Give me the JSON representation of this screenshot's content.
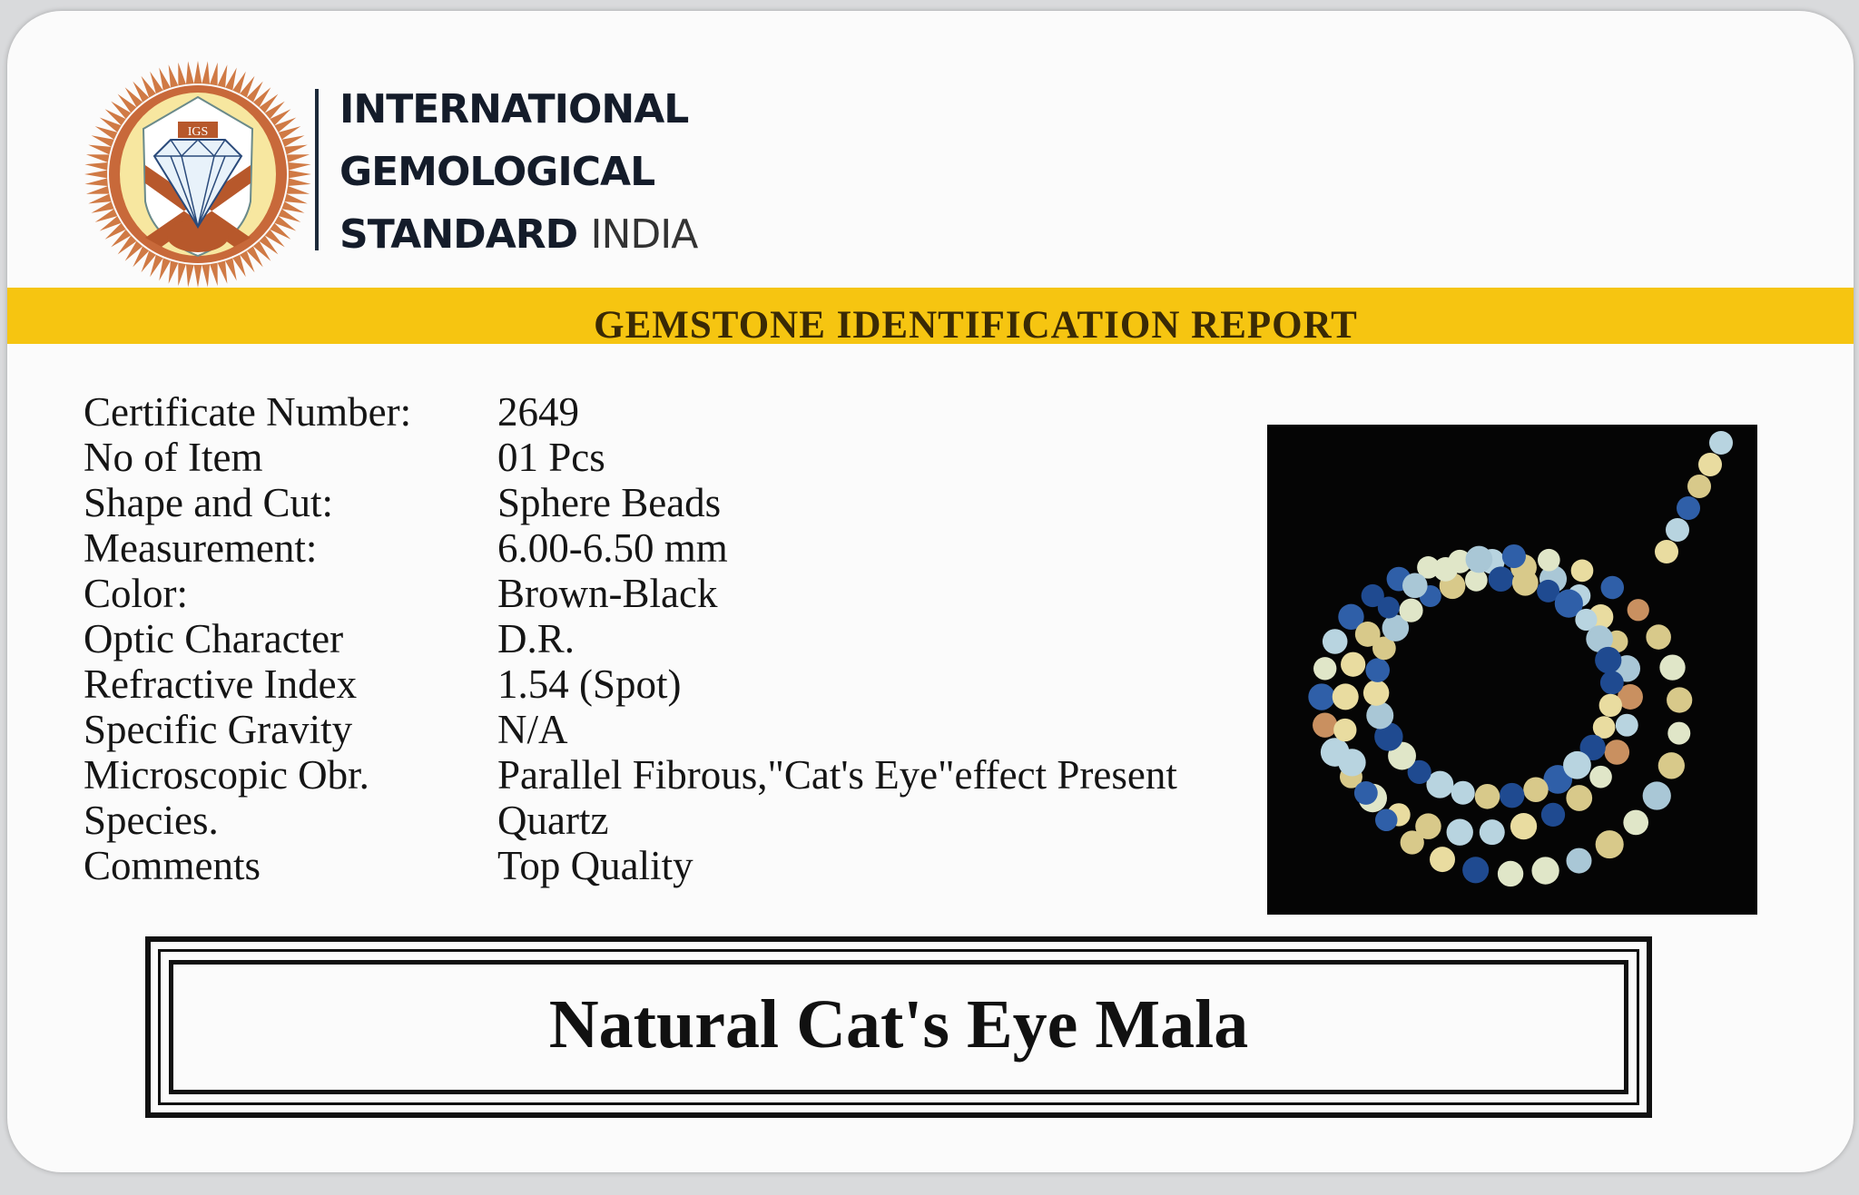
{
  "organization": {
    "line1": "INTERNATIONAL",
    "line2": "GEMOLOGICAL",
    "line3_bold": "STANDARD",
    "line3_light": "INDIA",
    "logo_text": "IGS"
  },
  "report_title": "GEMSTONE IDENTIFICATION REPORT",
  "fields": [
    {
      "label": "Certificate Number:",
      "value": "2649"
    },
    {
      "label": "No of Item",
      "value": "01 Pcs"
    },
    {
      "label": "Shape and Cut:",
      "value": "Sphere Beads"
    },
    {
      "label": "Measurement:",
      "value": "6.00-6.50 mm"
    },
    {
      "label": "Color:",
      "value": "Brown-Black"
    },
    {
      "label": "Optic Character",
      "value": "D.R."
    },
    {
      "label": "Refractive Index",
      "value": "1.54 (Spot)"
    },
    {
      "label": "Specific Gravity",
      "value": "N/A"
    },
    {
      "label": "Microscopic Obr.",
      "value": "Parallel Fibrous,\"Cat's Eye\"effect Present"
    },
    {
      "label": "Species.",
      "value": "Quartz"
    },
    {
      "label": "Comments",
      "value": "Top Quality"
    }
  ],
  "item_name": "Natural Cat's Eye Mala",
  "colors": {
    "band": "#f6c511",
    "logo_orange": "#c8693a",
    "logo_cream": "#f7e7a0",
    "text": "#151515"
  }
}
